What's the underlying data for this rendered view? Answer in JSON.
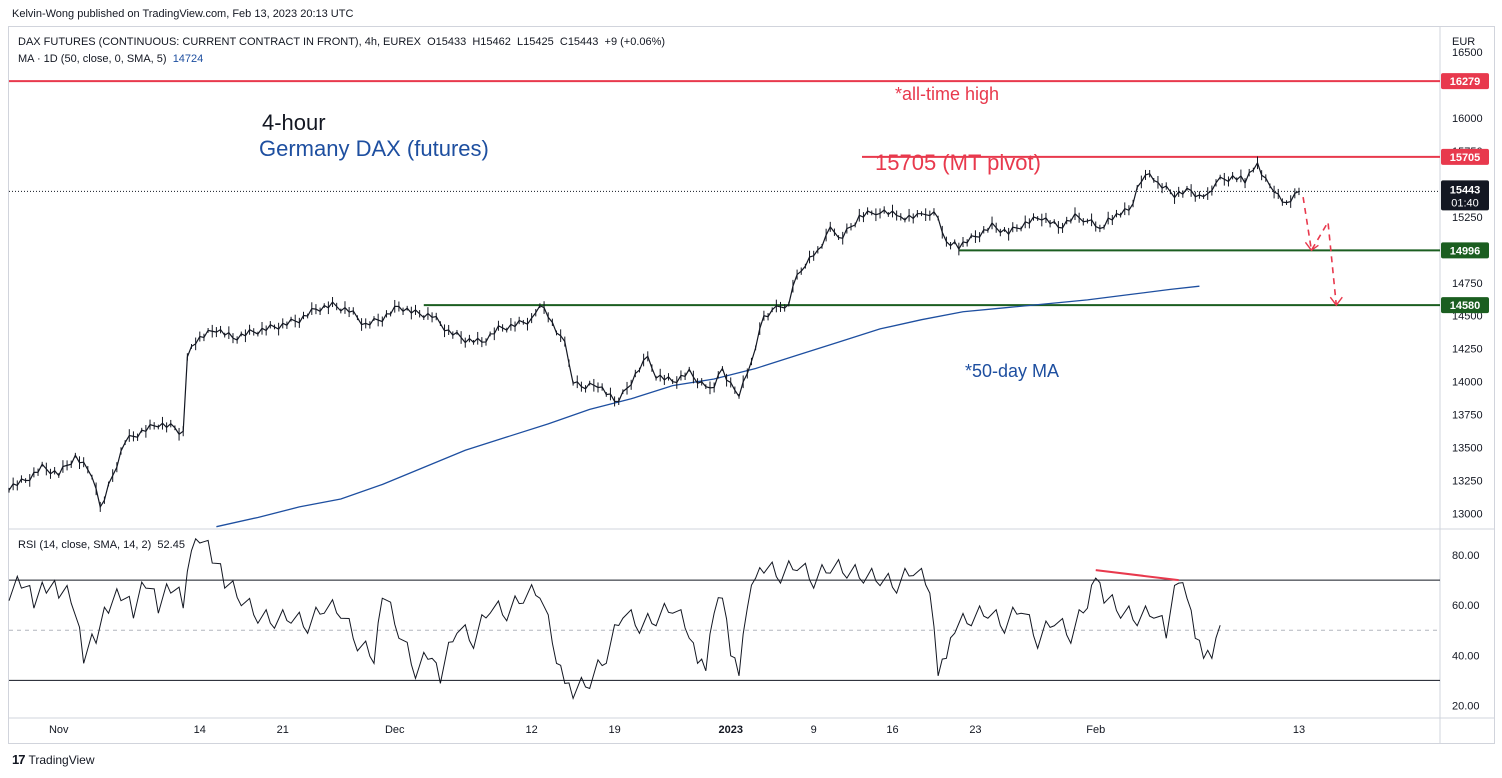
{
  "header": {
    "published_by": "Kelvin-Wong published on TradingView.com, Feb 13, 2023 20:13 UTC"
  },
  "legend": {
    "symbol_line": "DAX FUTURES (CONTINUOUS: CURRENT CONTRACT IN FRONT), 4h, EUREX",
    "open": "O15433",
    "high": "H15462",
    "low": "L15425",
    "close": "C15443",
    "change": "+9 (+0.06%)",
    "ma_label": "MA · 1D (50, close, 0, SMA, 5)",
    "ma_value": "14724",
    "rsi_label": "RSI (14, close, SMA, 14, 2)",
    "rsi_value": "52.45"
  },
  "footer": {
    "brand": "TradingView",
    "logo": "17"
  },
  "colors": {
    "candles": "#131722",
    "ma": "#1e4fa0",
    "resistance": "#e8394d",
    "support": "#1b5e20",
    "rsi": "#131722"
  },
  "chart_data": {
    "type": "line",
    "currency": "EUR",
    "annotations": {
      "title_line1": "4-hour",
      "title_line2": "Germany DAX (futures)",
      "ath": "*all-time high",
      "pivot": "15705 (MT pivot)",
      "ma": "*50-day MA"
    },
    "price_ticks": [
      13000,
      13250,
      13500,
      13750,
      14000,
      14250,
      14500,
      14750,
      15000,
      15250,
      15500,
      15750,
      16000,
      16250,
      16500
    ],
    "price_tick_labels": [
      "13000",
      "13250",
      "13500",
      "13750",
      "14000",
      "14250",
      "14500",
      "14750",
      "15000",
      "15250",
      "15500",
      "15750",
      "16000",
      "16250",
      "16500"
    ],
    "ylim": [
      12890,
      16690
    ],
    "x_ticks": [
      {
        "label": "Nov",
        "bar": 12
      },
      {
        "label": "14",
        "bar": 46
      },
      {
        "label": "21",
        "bar": 66
      },
      {
        "label": "Dec",
        "bar": 93
      },
      {
        "label": "12",
        "bar": 126
      },
      {
        "label": "19",
        "bar": 146
      },
      {
        "label": "2023",
        "bar": 174
      },
      {
        "label": "9",
        "bar": 194
      },
      {
        "label": "16",
        "bar": 213
      },
      {
        "label": "23",
        "bar": 233
      },
      {
        "label": "Feb",
        "bar": 262
      },
      {
        "label": "13",
        "bar": 311
      }
    ],
    "levels": [
      {
        "name": "all-time high",
        "value": 16279,
        "label": "16279",
        "color": "#e8394d"
      },
      {
        "name": "MT pivot",
        "value": 15705,
        "label": "15705",
        "color": "#e8394d"
      },
      {
        "name": "support 1",
        "value": 14996,
        "label": "14996",
        "color": "#1b5e20"
      },
      {
        "name": "support 2",
        "value": 14580,
        "label": "14580",
        "color": "#1b5e20"
      }
    ],
    "last_price": {
      "value": 15443,
      "label": "15443",
      "countdown": "01:40"
    },
    "price_path": [
      [
        0,
        13200
      ],
      [
        4,
        13250
      ],
      [
        8,
        13350
      ],
      [
        12,
        13300
      ],
      [
        16,
        13430
      ],
      [
        20,
        13300
      ],
      [
        22,
        13050
      ],
      [
        24,
        13200
      ],
      [
        28,
        13550
      ],
      [
        32,
        13620
      ],
      [
        36,
        13680
      ],
      [
        40,
        13650
      ],
      [
        42,
        13600
      ],
      [
        43,
        14200
      ],
      [
        46,
        14330
      ],
      [
        50,
        14400
      ],
      [
        54,
        14330
      ],
      [
        58,
        14370
      ],
      [
        62,
        14400
      ],
      [
        66,
        14430
      ],
      [
        70,
        14470
      ],
      [
        74,
        14550
      ],
      [
        78,
        14580
      ],
      [
        82,
        14540
      ],
      [
        86,
        14430
      ],
      [
        90,
        14480
      ],
      [
        94,
        14570
      ],
      [
        98,
        14520
      ],
      [
        102,
        14500
      ],
      [
        106,
        14380
      ],
      [
        110,
        14320
      ],
      [
        114,
        14300
      ],
      [
        118,
        14400
      ],
      [
        122,
        14430
      ],
      [
        126,
        14470
      ],
      [
        128,
        14600
      ],
      [
        131,
        14450
      ],
      [
        134,
        14280
      ],
      [
        136,
        14000
      ],
      [
        138,
        13950
      ],
      [
        142,
        13980
      ],
      [
        146,
        13850
      ],
      [
        148,
        13900
      ],
      [
        152,
        14100
      ],
      [
        154,
        14180
      ],
      [
        156,
        14050
      ],
      [
        160,
        14000
      ],
      [
        164,
        14070
      ],
      [
        166,
        14000
      ],
      [
        168,
        13950
      ],
      [
        170,
        13980
      ],
      [
        172,
        14100
      ],
      [
        174,
        13970
      ],
      [
        176,
        13900
      ],
      [
        178,
        14050
      ],
      [
        180,
        14280
      ],
      [
        182,
        14500
      ],
      [
        185,
        14550
      ],
      [
        188,
        14600
      ],
      [
        190,
        14800
      ],
      [
        192,
        14900
      ],
      [
        195,
        15000
      ],
      [
        198,
        15150
      ],
      [
        201,
        15100
      ],
      [
        205,
        15250
      ],
      [
        210,
        15300
      ],
      [
        215,
        15250
      ],
      [
        220,
        15250
      ],
      [
        223,
        15300
      ],
      [
        226,
        15050
      ],
      [
        229,
        15030
      ],
      [
        233,
        15100
      ],
      [
        237,
        15180
      ],
      [
        241,
        15130
      ],
      [
        245,
        15200
      ],
      [
        249,
        15250
      ],
      [
        253,
        15170
      ],
      [
        257,
        15250
      ],
      [
        260,
        15230
      ],
      [
        263,
        15150
      ],
      [
        266,
        15250
      ],
      [
        270,
        15300
      ],
      [
        272,
        15450
      ],
      [
        274,
        15580
      ],
      [
        277,
        15500
      ],
      [
        281,
        15420
      ],
      [
        285,
        15450
      ],
      [
        288,
        15380
      ],
      [
        291,
        15520
      ],
      [
        295,
        15550
      ],
      [
        298,
        15530
      ],
      [
        301,
        15660
      ],
      [
        303,
        15520
      ],
      [
        305,
        15450
      ],
      [
        307,
        15350
      ],
      [
        309,
        15390
      ],
      [
        311,
        15443
      ]
    ],
    "forecast_path": [
      [
        312,
        15400
      ],
      [
        314,
        14996
      ],
      [
        318,
        15210
      ],
      [
        320,
        14580
      ]
    ],
    "ma_path": [
      [
        50,
        12900
      ],
      [
        60,
        12970
      ],
      [
        70,
        13050
      ],
      [
        80,
        13110
      ],
      [
        90,
        13220
      ],
      [
        100,
        13350
      ],
      [
        110,
        13480
      ],
      [
        120,
        13580
      ],
      [
        130,
        13680
      ],
      [
        140,
        13790
      ],
      [
        150,
        13870
      ],
      [
        160,
        13970
      ],
      [
        170,
        14020
      ],
      [
        180,
        14100
      ],
      [
        190,
        14200
      ],
      [
        200,
        14300
      ],
      [
        210,
        14400
      ],
      [
        220,
        14470
      ],
      [
        230,
        14530
      ],
      [
        240,
        14560
      ],
      [
        250,
        14590
      ],
      [
        260,
        14620
      ],
      [
        270,
        14660
      ],
      [
        280,
        14700
      ],
      [
        287,
        14724
      ]
    ],
    "rsi": {
      "ylim": [
        15,
        90
      ],
      "ticks": [
        20,
        40,
        60,
        80
      ],
      "tick_labels": [
        "20.00",
        "40.00",
        "60.00",
        "80.00"
      ],
      "levels": [
        70,
        50,
        30
      ],
      "path": [
        [
          0,
          65
        ],
        [
          3,
          70
        ],
        [
          6,
          62
        ],
        [
          9,
          68
        ],
        [
          12,
          66
        ],
        [
          15,
          64
        ],
        [
          18,
          40
        ],
        [
          21,
          48
        ],
        [
          24,
          60
        ],
        [
          27,
          65
        ],
        [
          30,
          58
        ],
        [
          33,
          70
        ],
        [
          36,
          60
        ],
        [
          39,
          68
        ],
        [
          42,
          62
        ],
        [
          44,
          85
        ],
        [
          46,
          88
        ],
        [
          49,
          80
        ],
        [
          52,
          70
        ],
        [
          56,
          63
        ],
        [
          60,
          56
        ],
        [
          64,
          54
        ],
        [
          68,
          56
        ],
        [
          72,
          52
        ],
        [
          76,
          60
        ],
        [
          80,
          58
        ],
        [
          84,
          45
        ],
        [
          88,
          40
        ],
        [
          90,
          66
        ],
        [
          94,
          50
        ],
        [
          98,
          34
        ],
        [
          102,
          42
        ],
        [
          104,
          32
        ],
        [
          108,
          52
        ],
        [
          112,
          46
        ],
        [
          116,
          60
        ],
        [
          120,
          57
        ],
        [
          124,
          64
        ],
        [
          128,
          66
        ],
        [
          132,
          40
        ],
        [
          134,
          32
        ],
        [
          136,
          26
        ],
        [
          140,
          30
        ],
        [
          144,
          40
        ],
        [
          148,
          58
        ],
        [
          152,
          52
        ],
        [
          156,
          55
        ],
        [
          160,
          60
        ],
        [
          164,
          50
        ],
        [
          166,
          40
        ],
        [
          168,
          37
        ],
        [
          170,
          60
        ],
        [
          172,
          66
        ],
        [
          174,
          43
        ],
        [
          176,
          35
        ],
        [
          178,
          62
        ],
        [
          180,
          74
        ],
        [
          182,
          76
        ],
        [
          186,
          72
        ],
        [
          190,
          77
        ],
        [
          194,
          70
        ],
        [
          198,
          76
        ],
        [
          202,
          74
        ],
        [
          206,
          72
        ],
        [
          210,
          71
        ],
        [
          214,
          68
        ],
        [
          218,
          75
        ],
        [
          222,
          68
        ],
        [
          224,
          35
        ],
        [
          226,
          42
        ],
        [
          228,
          52
        ],
        [
          232,
          55
        ],
        [
          236,
          58
        ],
        [
          240,
          52
        ],
        [
          244,
          60
        ],
        [
          248,
          46
        ],
        [
          252,
          55
        ],
        [
          256,
          48
        ],
        [
          260,
          62
        ],
        [
          262,
          74
        ],
        [
          264,
          64
        ],
        [
          268,
          58
        ],
        [
          272,
          55
        ],
        [
          276,
          58
        ],
        [
          279,
          50
        ],
        [
          282,
          72
        ],
        [
          284,
          66
        ],
        [
          286,
          50
        ],
        [
          288,
          42
        ],
        [
          290,
          42
        ],
        [
          292,
          52
        ]
      ],
      "divergence": [
        [
          262,
          74
        ],
        [
          282,
          70
        ]
      ]
    },
    "visible_bars": [
      0,
      345
    ]
  }
}
